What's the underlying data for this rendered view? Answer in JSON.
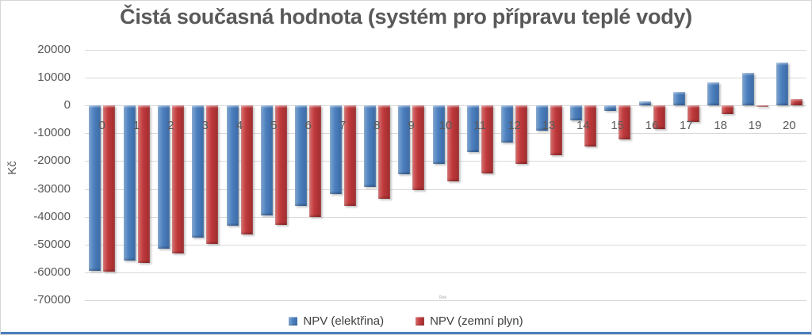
{
  "chart_data": {
    "type": "bar",
    "title": "Čistá současná hodnota (systém pro přípravu teplé vody)",
    "xlabel": "Rok",
    "ylabel": "Kč",
    "ylim": [
      -70000,
      20000
    ],
    "yticks": [
      20000,
      10000,
      0,
      -10000,
      -20000,
      -30000,
      -40000,
      -50000,
      -60000,
      -70000
    ],
    "grid": "horizontal",
    "legend_position": "bottom",
    "categories": [
      "0",
      "1",
      "2",
      "3",
      "4",
      "5",
      "6",
      "7",
      "8",
      "9",
      "10",
      "11",
      "12",
      "13",
      "14",
      "15",
      "16",
      "17",
      "18",
      "19",
      "20"
    ],
    "series": [
      {
        "name": "NPV (elektřina)",
        "color": "#4d80be",
        "values": [
          -59500,
          -55600,
          -51500,
          -47600,
          -43200,
          -39600,
          -36200,
          -32000,
          -29200,
          -24700,
          -21200,
          -16900,
          -13400,
          -9100,
          -5500,
          -2000,
          1500,
          4800,
          8300,
          11600,
          15200
        ]
      },
      {
        "name": "NPV (zemní plyn)",
        "color": "#c03a3c",
        "values": [
          -59800,
          -56600,
          -53100,
          -49800,
          -46300,
          -42900,
          -40100,
          -36000,
          -33600,
          -30500,
          -27400,
          -24400,
          -21200,
          -17900,
          -14800,
          -12300,
          -8600,
          -5900,
          -3100,
          -500,
          2300
        ]
      }
    ]
  }
}
